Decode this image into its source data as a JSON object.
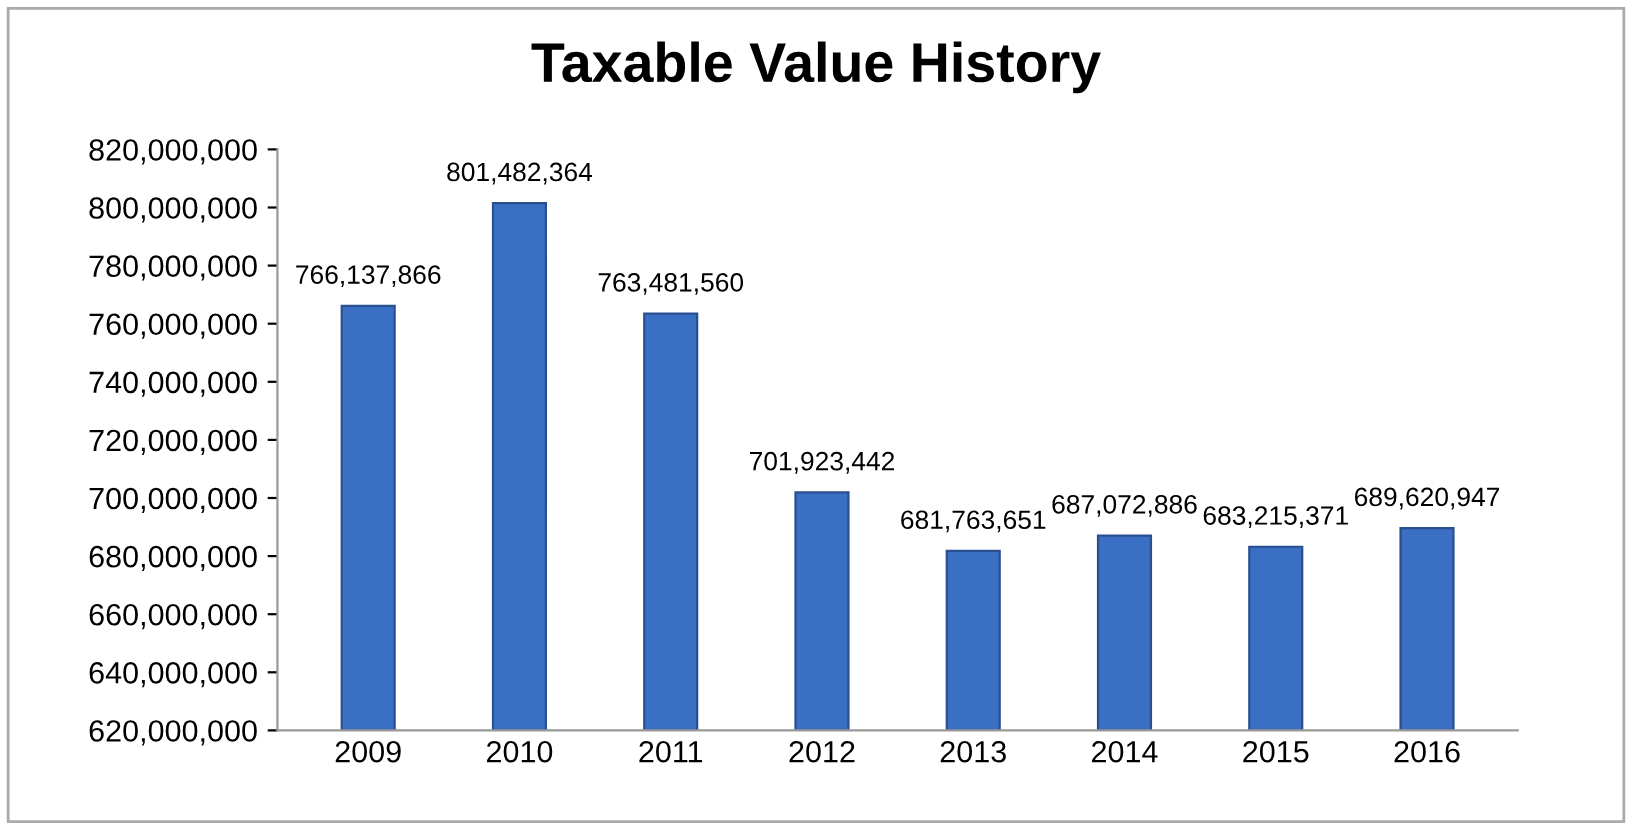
{
  "chart_data": {
    "type": "bar",
    "title": "Taxable Value History",
    "categories": [
      "2009",
      "2010",
      "2011",
      "2012",
      "2013",
      "2014",
      "2015",
      "2016"
    ],
    "values": [
      766137866,
      801482364,
      763481560,
      701923442,
      681763651,
      687072886,
      683215371,
      689620947
    ],
    "value_labels": [
      "766,137,866",
      "801,482,364",
      "763,481,560",
      "701,923,442",
      "681,763,651",
      "687,072,886",
      "683,215,371",
      "689,620,947"
    ],
    "color": "#3a6fc4",
    "ylim": [
      620000000,
      820000000
    ],
    "yticks": [
      {
        "value": 620000000,
        "label": "620,000,000"
      },
      {
        "value": 640000000,
        "label": "640,000,000"
      },
      {
        "value": 660000000,
        "label": "660,000,000"
      },
      {
        "value": 680000000,
        "label": "680,000,000"
      },
      {
        "value": 700000000,
        "label": "700,000,000"
      },
      {
        "value": 720000000,
        "label": "720,000,000"
      },
      {
        "value": 740000000,
        "label": "740,000,000"
      },
      {
        "value": 760000000,
        "label": "760,000,000"
      },
      {
        "value": 780000000,
        "label": "780,000,000"
      },
      {
        "value": 800000000,
        "label": "800,000,000"
      },
      {
        "value": 820000000,
        "label": "820,000,000"
      }
    ],
    "grid": false
  }
}
